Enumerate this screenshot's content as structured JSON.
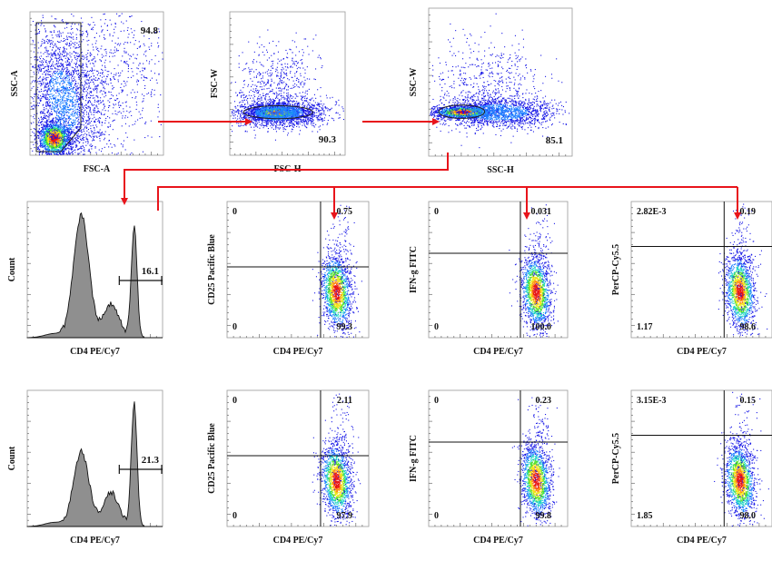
{
  "chart_data": [
    {
      "type": "scatter",
      "panel": "fsc-ssc",
      "xlabel": "FSC-A",
      "ylabel": "SSC-A",
      "gates": [
        {
          "label": "94.8",
          "value": 94.8
        }
      ]
    },
    {
      "type": "scatter",
      "panel": "fsch-fscw",
      "xlabel": "FSC-H",
      "ylabel": "FSC-W",
      "gates": [
        {
          "label": "90.3",
          "value": 90.3
        }
      ]
    },
    {
      "type": "scatter",
      "panel": "ssch-sscw",
      "xlabel": "SSC-H",
      "ylabel": "SSC-W",
      "gates": [
        {
          "label": "85.1",
          "value": 85.1
        }
      ]
    },
    {
      "type": "area",
      "panel": "hist-row1",
      "xlabel": "CD4 PE/Cy7",
      "ylabel": "Count",
      "gates": [
        {
          "label": "16.1",
          "value": 16.1
        }
      ]
    },
    {
      "type": "scatter",
      "panel": "cd25-row1",
      "xlabel": "CD4 PE/Cy7",
      "ylabel": "CD25 Pacific Blue",
      "quadrants": {
        "tl": "0",
        "tr": "0.75",
        "bl": "0",
        "br": "99.3"
      }
    },
    {
      "type": "scatter",
      "panel": "ifng-row1",
      "xlabel": "CD4 PE/Cy7",
      "ylabel": "IFN-g FITC",
      "quadrants": {
        "tl": "0",
        "tr": "0.031",
        "bl": "0",
        "br": "100.0"
      }
    },
    {
      "type": "scatter",
      "panel": "percp-row1",
      "xlabel": "CD4 PE/Cy7",
      "ylabel": "PerCP-Cy5.5",
      "quadrants": {
        "tl": "2.82E-3",
        "tr": "0.19",
        "bl": "1.17",
        "br": "98.6"
      }
    },
    {
      "type": "area",
      "panel": "hist-row2",
      "xlabel": "CD4 PE/Cy7",
      "ylabel": "Count",
      "gates": [
        {
          "label": "21.3",
          "value": 21.3
        }
      ]
    },
    {
      "type": "scatter",
      "panel": "cd25-row2",
      "xlabel": "CD4 PE/Cy7",
      "ylabel": "CD25 Pacific Blue",
      "quadrants": {
        "tl": "0",
        "tr": "2.11",
        "bl": "0",
        "br": "97.9"
      }
    },
    {
      "type": "scatter",
      "panel": "ifng-row2",
      "xlabel": "CD4 PE/Cy7",
      "ylabel": "IFN-g FITC",
      "quadrants": {
        "tl": "0",
        "tr": "0.23",
        "bl": "0",
        "br": "99.8"
      }
    },
    {
      "type": "scatter",
      "panel": "percp-row2",
      "xlabel": "CD4 PE/Cy7",
      "ylabel": "PerCP-Cy5.5",
      "quadrants": {
        "tl": "3.15E-3",
        "tr": "0.15",
        "bl": "1.85",
        "br": "98.0"
      }
    }
  ],
  "colors": {
    "arrow": "#e8141b",
    "hist_fill": "#8f8f8f",
    "axis": "#555555",
    "gate": "#111111"
  }
}
